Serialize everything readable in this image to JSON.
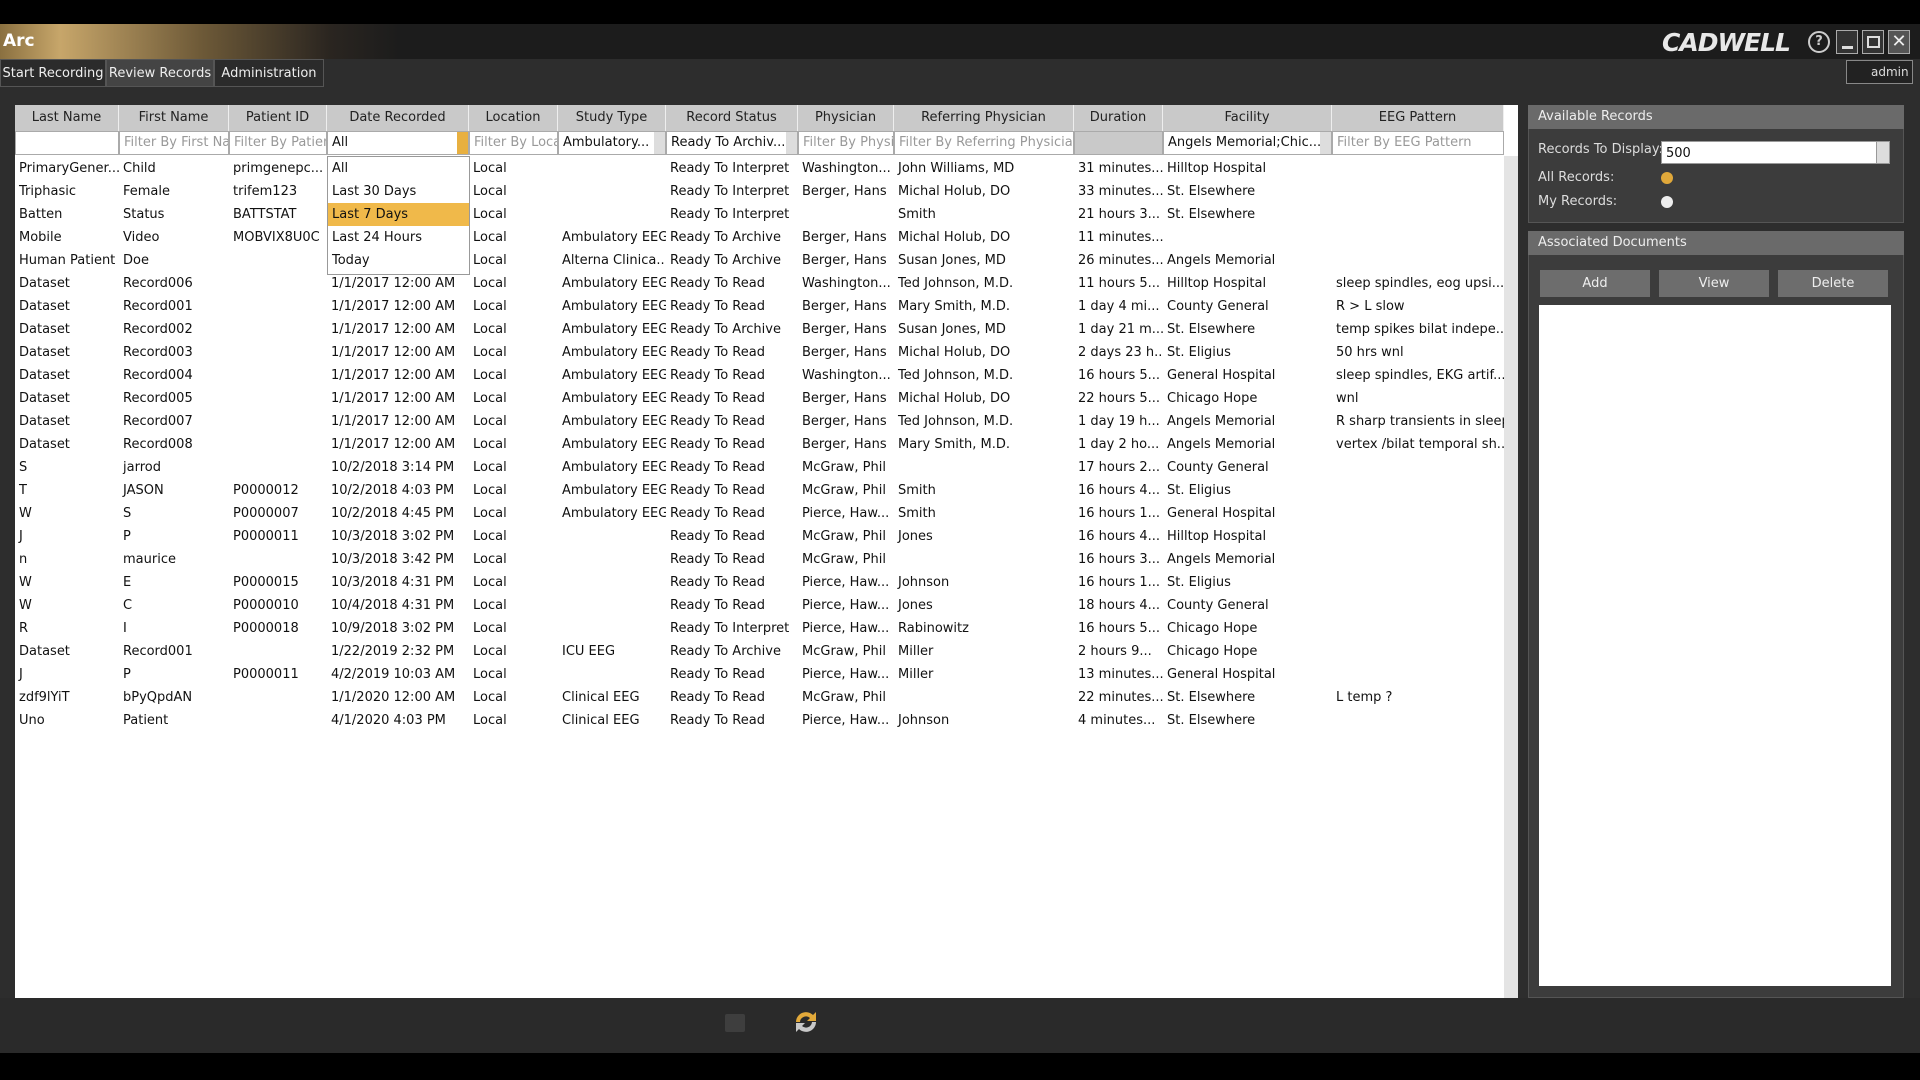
{
  "app": {
    "title": "Arc",
    "brand": "CADWELL",
    "user": "admin",
    "help": "?",
    "tabs": [
      "Start Recording",
      "Review Records",
      "Administration"
    ],
    "active_tab": 1
  },
  "table": {
    "columns": [
      "Last Name",
      "First Name",
      "Patient ID",
      "Date Recorded",
      "Location",
      "Study Type",
      "Record Status",
      "Physician",
      "Referring Physician",
      "Duration",
      "Facility",
      "EEG Pattern"
    ],
    "filters": [
      null,
      "Filter By First Na",
      "Filter By Patien",
      "All",
      "Filter By Loca",
      "Ambulatory...",
      "Ready To Archiv...",
      "Filter By Physi",
      "Filter By Referring Physician",
      null,
      "Angels Memorial;Chic...",
      "Filter By EEG Pattern"
    ],
    "rows": [
      [
        "PrimaryGener...",
        "Child",
        "primgenepc...",
        null,
        "Local",
        null,
        "Ready To Interpret",
        "Washington...",
        "John Williams, MD",
        "31 minutes...",
        "Hilltop Hospital",
        null
      ],
      [
        "Triphasic",
        "Female",
        "trifem123",
        null,
        "Local",
        null,
        "Ready To Interpret",
        "Berger, Hans",
        "Michal Holub, DO",
        "33 minutes...",
        "St. Elsewhere",
        null
      ],
      [
        "Batten",
        "Status",
        "BATTSTAT",
        null,
        "Local",
        null,
        "Ready To Interpret",
        null,
        "Smith",
        "21 hours 3...",
        "St. Elsewhere",
        null
      ],
      [
        "Mobile",
        "Video",
        "MOBVIX8U0C",
        null,
        "Local",
        "Ambulatory EEG",
        "Ready To Archive",
        "Berger, Hans",
        "Michal Holub, DO",
        "11 minutes...",
        null,
        null
      ],
      [
        "Human Patient",
        "Doe",
        null,
        null,
        "Local",
        "Alterna Clinica...",
        "Ready To Archive",
        "Berger, Hans",
        "Susan Jones, MD",
        "26 minutes...",
        "Angels Memorial",
        null
      ],
      [
        "Dataset",
        "Record006",
        null,
        "1/1/2017 12:00 AM",
        "Local",
        "Ambulatory EEG",
        "Ready To Read",
        "Washington...",
        "Ted Johnson, M.D.",
        "11 hours 5...",
        "Hilltop Hospital",
        "sleep spindles, eog upsi..."
      ],
      [
        "Dataset",
        "Record001",
        null,
        "1/1/2017 12:00 AM",
        "Local",
        "Ambulatory EEG",
        "Ready To Read",
        "Berger, Hans",
        "Mary Smith, M.D.",
        "1 day 4 mi...",
        "County General",
        "R > L slow"
      ],
      [
        "Dataset",
        "Record002",
        null,
        "1/1/2017 12:00 AM",
        "Local",
        "Ambulatory EEG",
        "Ready To Archive",
        "Berger, Hans",
        "Susan Jones, MD",
        "1 day 21 m...",
        "St. Elsewhere",
        "temp spikes bilat indepe..."
      ],
      [
        "Dataset",
        "Record003",
        null,
        "1/1/2017 12:00 AM",
        "Local",
        "Ambulatory EEG",
        "Ready To Read",
        "Berger, Hans",
        "Michal Holub, DO",
        "2 days 23 h...",
        "St. Eligius",
        "50 hrs wnl"
      ],
      [
        "Dataset",
        "Record004",
        null,
        "1/1/2017 12:00 AM",
        "Local",
        "Ambulatory EEG",
        "Ready To Read",
        "Washington...",
        "Ted Johnson, M.D.",
        "16 hours 5...",
        "General Hospital",
        "sleep spindles, EKG artif..."
      ],
      [
        "Dataset",
        "Record005",
        null,
        "1/1/2017 12:00 AM",
        "Local",
        "Ambulatory EEG",
        "Ready To Read",
        "Berger, Hans",
        "Michal Holub, DO",
        "22 hours 5...",
        "Chicago Hope",
        "wnl"
      ],
      [
        "Dataset",
        "Record007",
        null,
        "1/1/2017 12:00 AM",
        "Local",
        "Ambulatory EEG",
        "Ready To Read",
        "Berger, Hans",
        "Ted Johnson, M.D.",
        "1 day 19 h...",
        "Angels Memorial",
        "R sharp transients in sleep"
      ],
      [
        "Dataset",
        "Record008",
        null,
        "1/1/2017 12:00 AM",
        "Local",
        "Ambulatory EEG",
        "Ready To Read",
        "Berger, Hans",
        "Mary Smith, M.D.",
        "1 day 2 ho...",
        "Angels Memorial",
        "vertex /bilat temporal sh..."
      ],
      [
        "S",
        "jarrod",
        null,
        "10/2/2018 3:14 PM",
        "Local",
        "Ambulatory EEG",
        "Ready To Read",
        "McGraw, Phil",
        null,
        "17 hours 2...",
        "County General",
        null
      ],
      [
        "T",
        "JASON",
        "P0000012",
        "10/2/2018 4:03 PM",
        "Local",
        "Ambulatory EEG",
        "Ready To Read",
        "McGraw, Phil",
        "Smith",
        "16 hours 4...",
        "St. Eligius",
        null
      ],
      [
        "W",
        "S",
        "P0000007",
        "10/2/2018 4:45 PM",
        "Local",
        "Ambulatory EEG",
        "Ready To Read",
        "Pierce, Haw...",
        "Smith",
        "16 hours 1...",
        "General Hospital",
        null
      ],
      [
        "J",
        "P",
        "P0000011",
        "10/3/2018 3:02 PM",
        "Local",
        null,
        "Ready To Read",
        "McGraw, Phil",
        "Jones",
        "16 hours 4...",
        "Hilltop Hospital",
        null
      ],
      [
        "n",
        "maurice",
        null,
        "10/3/2018 3:42 PM",
        "Local",
        null,
        "Ready To Read",
        "McGraw, Phil",
        null,
        "16 hours 3...",
        "Angels Memorial",
        null
      ],
      [
        "W",
        "E",
        "P0000015",
        "10/3/2018 4:31 PM",
        "Local",
        null,
        "Ready To Read",
        "Pierce, Haw...",
        "Johnson",
        "16 hours 1...",
        "St. Eligius",
        null
      ],
      [
        "W",
        "C",
        "P0000010",
        "10/4/2018 4:31 PM",
        "Local",
        null,
        "Ready To Read",
        "Pierce, Haw...",
        "Jones",
        "18 hours 4...",
        "County General",
        null
      ],
      [
        "R",
        "I",
        "P0000018",
        "10/9/2018 3:02 PM",
        "Local",
        null,
        "Ready To Interpret",
        "Pierce, Haw...",
        "Rabinowitz",
        "16 hours 5...",
        "Chicago Hope",
        null
      ],
      [
        "Dataset",
        "Record001",
        null,
        "1/22/2019 2:32 PM",
        "Local",
        "ICU EEG",
        "Ready To Archive",
        "McGraw, Phil",
        "Miller",
        "2 hours 9...",
        "Chicago Hope",
        null
      ],
      [
        "J",
        "P",
        "P0000011",
        "4/2/2019 10:03 AM",
        "Local",
        null,
        "Ready To Read",
        "Pierce, Haw...",
        "Miller",
        "13 minutes...",
        "General Hospital",
        null
      ],
      [
        "zdf9lYiT",
        "bPyQpdAN",
        null,
        "1/1/2020 12:00 AM",
        "Local",
        "Clinical EEG",
        "Ready To Read",
        "McGraw, Phil",
        null,
        "22 minutes...",
        "St. Elsewhere",
        "L temp ?"
      ],
      [
        "Uno",
        "Patient",
        null,
        "4/1/2020 4:03 PM",
        "Local",
        "Clinical EEG",
        "Ready To Read",
        "Pierce, Haw...",
        "Johnson",
        "4 minutes...",
        "St. Elsewhere",
        null
      ]
    ]
  },
  "dropdown": {
    "options": [
      "All",
      "Last 30 Days",
      "Last 7 Days",
      "Last 24 Hours",
      "Today"
    ],
    "highlighted": 2
  },
  "available": {
    "title": "Available Records",
    "display_label": "Records To Display:",
    "display_value": "500",
    "all_label": "All Records:",
    "my_label": "My Records:"
  },
  "documents": {
    "title": "Associated Documents",
    "buttons": [
      "Add",
      "View",
      "Delete"
    ]
  }
}
